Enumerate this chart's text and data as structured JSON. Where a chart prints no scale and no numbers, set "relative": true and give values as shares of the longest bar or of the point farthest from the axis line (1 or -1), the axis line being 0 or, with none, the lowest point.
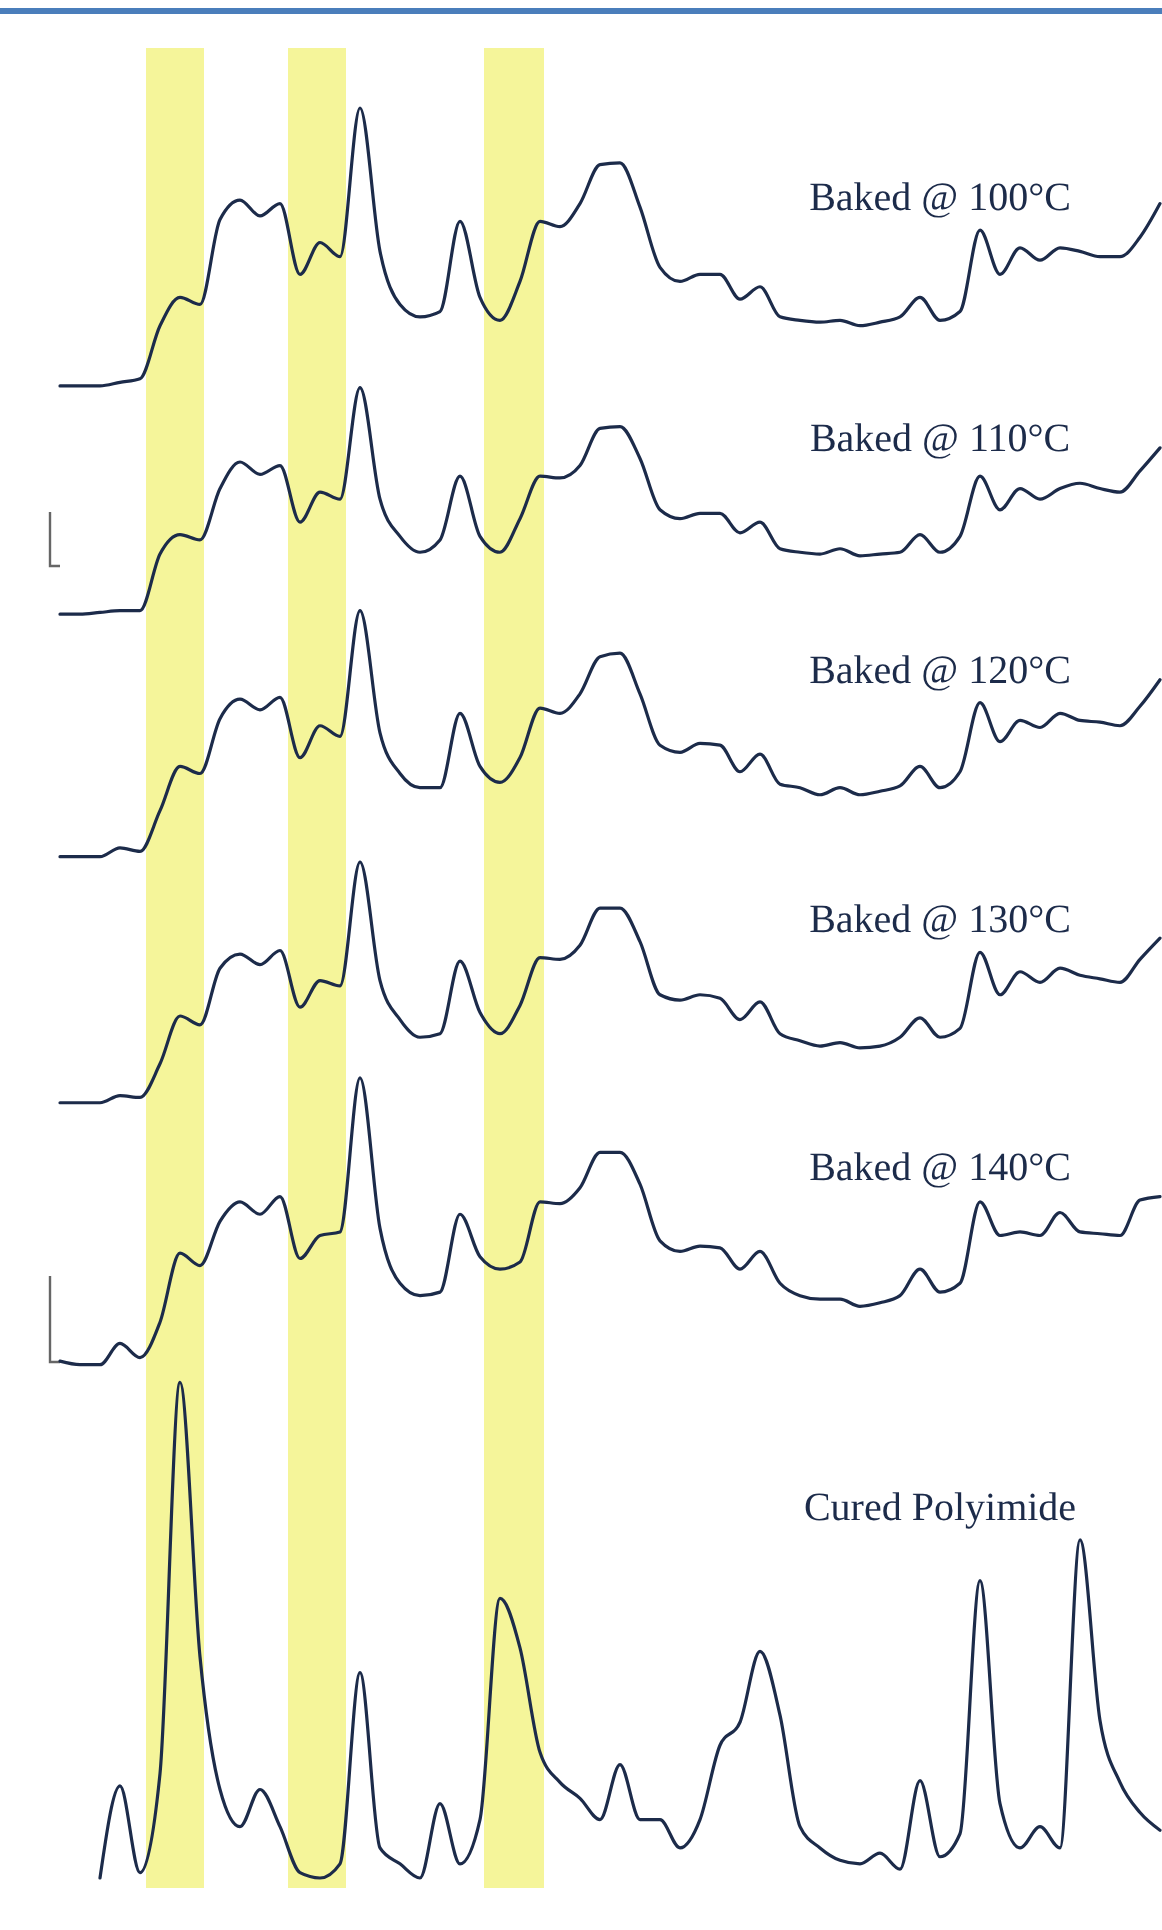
{
  "chart_data": {
    "type": "line",
    "relative": true,
    "legend": false,
    "line_style": "solid",
    "categories": [
      null,
      null,
      null,
      null,
      null,
      null,
      null,
      null,
      null,
      null,
      null,
      null,
      null,
      null,
      null,
      null,
      null,
      null,
      null,
      null,
      null,
      null,
      null,
      null,
      null,
      null,
      null,
      null,
      null,
      null,
      null,
      null,
      null,
      null,
      null,
      null,
      null,
      null,
      null,
      null,
      null,
      null,
      null,
      null,
      null,
      null,
      null,
      null,
      null,
      null,
      null,
      null,
      null,
      null,
      null,
      null
    ],
    "series": [
      {
        "name": "Baked @ 100°C",
        "color": "#1c2b4a",
        "values": [
          0.843,
          0.843,
          0.843,
          0.845,
          0.847,
          0.877,
          0.893,
          0.889,
          0.937,
          0.948,
          0.939,
          0.946,
          0.906,
          0.924,
          0.916,
          1,
          0.919,
          0.889,
          0.882,
          0.885,
          0.936,
          0.893,
          0.88,
          0.902,
          0.936,
          0.933,
          0.946,
          0.968,
          0.969,
          0.944,
          0.91,
          0.902,
          0.906,
          0.906,
          0.892,
          0.899,
          0.882,
          0.88,
          0.879,
          0.88,
          0.877,
          0.879,
          0.882,
          0.893,
          0.88,
          0.885,
          0.931,
          0.906,
          0.921,
          0.914,
          0.921,
          0.919,
          0.916,
          0.916,
          0.927,
          0.946
        ]
      },
      {
        "name": "Baked @ 110°C",
        "color": "#1c2b4a",
        "values": [
          0.714,
          0.714,
          0.715,
          0.716,
          0.716,
          0.748,
          0.759,
          0.756,
          0.785,
          0.8,
          0.793,
          0.798,
          0.766,
          0.783,
          0.779,
          0.842,
          0.779,
          0.758,
          0.749,
          0.756,
          0.792,
          0.758,
          0.749,
          0.768,
          0.792,
          0.791,
          0.798,
          0.819,
          0.82,
          0.802,
          0.773,
          0.768,
          0.771,
          0.771,
          0.76,
          0.766,
          0.751,
          0.749,
          0.748,
          0.751,
          0.747,
          0.748,
          0.749,
          0.759,
          0.749,
          0.758,
          0.792,
          0.773,
          0.785,
          0.779,
          0.785,
          0.788,
          0.785,
          0.783,
          0.795,
          0.808
        ]
      },
      {
        "name": "Baked @ 120°C",
        "color": "#1c2b4a",
        "values": [
          0.577,
          0.577,
          0.577,
          0.582,
          0.58,
          0.603,
          0.628,
          0.624,
          0.655,
          0.666,
          0.66,
          0.667,
          0.633,
          0.651,
          0.645,
          0.716,
          0.647,
          0.624,
          0.616,
          0.616,
          0.658,
          0.628,
          0.619,
          0.633,
          0.661,
          0.658,
          0.669,
          0.69,
          0.692,
          0.669,
          0.64,
          0.636,
          0.641,
          0.64,
          0.625,
          0.635,
          0.618,
          0.616,
          0.612,
          0.616,
          0.612,
          0.614,
          0.617,
          0.628,
          0.616,
          0.625,
          0.664,
          0.642,
          0.654,
          0.65,
          0.658,
          0.654,
          0.653,
          0.651,
          0.662,
          0.677
        ]
      },
      {
        "name": "Baked @ 130°C",
        "color": "#1c2b4a",
        "values": [
          0.438,
          0.438,
          0.438,
          0.442,
          0.441,
          0.46,
          0.487,
          0.482,
          0.514,
          0.522,
          0.516,
          0.524,
          0.492,
          0.507,
          0.504,
          0.574,
          0.507,
          0.485,
          0.475,
          0.477,
          0.518,
          0.489,
          0.477,
          0.493,
          0.52,
          0.519,
          0.527,
          0.548,
          0.548,
          0.529,
          0.499,
          0.496,
          0.499,
          0.497,
          0.485,
          0.495,
          0.477,
          0.473,
          0.47,
          0.472,
          0.469,
          0.47,
          0.475,
          0.486,
          0.475,
          0.48,
          0.523,
          0.499,
          0.512,
          0.506,
          0.514,
          0.51,
          0.508,
          0.506,
          0.519,
          0.531
        ]
      },
      {
        "name": "Baked @ 140°C",
        "color": "#1c2b4a",
        "values": [
          0.292,
          0.29,
          0.29,
          0.302,
          0.294,
          0.314,
          0.353,
          0.346,
          0.371,
          0.382,
          0.375,
          0.385,
          0.35,
          0.363,
          0.365,
          0.452,
          0.367,
          0.336,
          0.329,
          0.331,
          0.375,
          0.351,
          0.344,
          0.348,
          0.382,
          0.381,
          0.39,
          0.41,
          0.41,
          0.392,
          0.36,
          0.354,
          0.357,
          0.356,
          0.344,
          0.354,
          0.336,
          0.329,
          0.327,
          0.327,
          0.323,
          0.325,
          0.329,
          0.344,
          0.331,
          0.336,
          0.382,
          0.363,
          0.365,
          0.363,
          0.376,
          0.365,
          0.364,
          0.363,
          0.383,
          0.385
        ]
      },
      {
        "name": "Cured Polyimide",
        "color": "#1c2b4a",
        "values": [
          null,
          null,
          0,
          0.052,
          0.003,
          0.059,
          0.28,
          0.125,
          0.05,
          0.029,
          0.05,
          0.029,
          0.003,
          0,
          0.008,
          0.116,
          0.017,
          0.008,
          0,
          0.042,
          0.008,
          0.033,
          0.158,
          0.13,
          0.071,
          0.054,
          0.045,
          0.033,
          0.064,
          0.033,
          0.033,
          0.017,
          0.033,
          0.075,
          0.088,
          0.128,
          0.092,
          0.029,
          0.017,
          0.01,
          0.008,
          0.014,
          0.005,
          0.055,
          0.012,
          0.025,
          0.168,
          0.042,
          0.017,
          0.029,
          0.017,
          0.191,
          0.089,
          0.054,
          0.037,
          0.027
        ]
      }
    ]
  }
}
